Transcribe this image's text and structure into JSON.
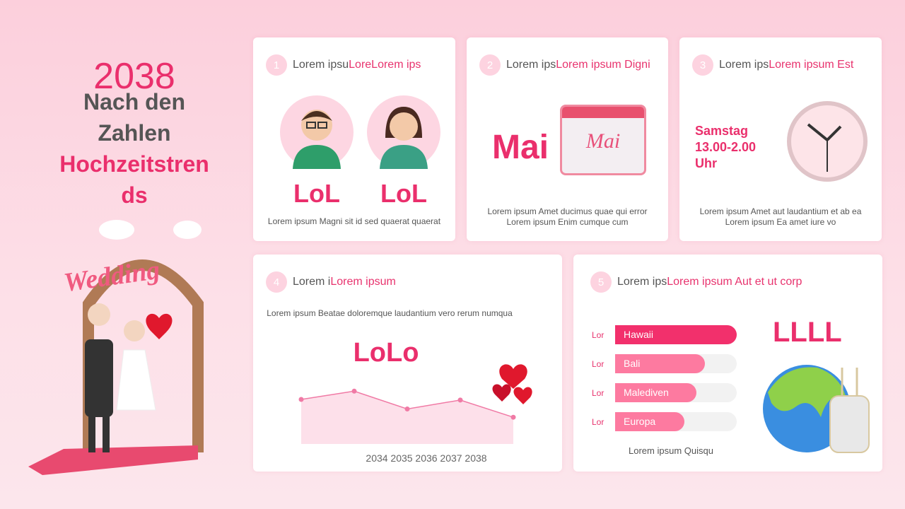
{
  "left": {
    "year": "2038",
    "title_line1": "Nach den",
    "title_line2": "Zahlen",
    "title_line3": "Hochzeitstren",
    "title_line4": "ds",
    "wedding_sign": "Wedding"
  },
  "cards": [
    {
      "num": "1",
      "title_gray": "Lorem ipsu",
      "title_pink": "LoreLorem ips",
      "label_a": "LoL",
      "label_b": "LoL",
      "caption": "Lorem ipsum Magni sit id sed quaerat quaerat"
    },
    {
      "num": "2",
      "title_gray": "Lorem ips",
      "title_pink": "Lorem ipsum Digni",
      "big": "Mai",
      "calendar_text": "Mai",
      "caption1": "Lorem ipsum Amet ducimus quae qui error",
      "caption2": "Lorem ipsum Enim cumque cum"
    },
    {
      "num": "3",
      "title_gray": "Lorem ips",
      "title_pink": "Lorem ipsum Est",
      "line1": "Samstag",
      "line2": "13.00-2.00",
      "line3": "Uhr",
      "caption1": "Lorem ipsum Amet aut laudantium et ab ea",
      "caption2": "Lorem ipsum Ea amet iure vo"
    },
    {
      "num": "4",
      "title_gray": "Lorem i",
      "title_pink": "Lorem ipsum",
      "subtitle": "Lorem ipsum Beatae doloremque laudantium vero rerum numqua",
      "big": "LoLo"
    },
    {
      "num": "5",
      "title_gray": "Lorem ips",
      "title_pink": "Lorem ipsum Aut et ut corp",
      "big": "LLLL",
      "caption": "Lorem ipsum Quisqu",
      "bars": [
        {
          "side": "Lor",
          "label": "Hawaii",
          "pct": 100,
          "color": "#f2306c"
        },
        {
          "side": "Lor",
          "label": "Bali",
          "pct": 74,
          "color": "#fd7aa0"
        },
        {
          "side": "Lor",
          "label": "Malediven",
          "pct": 67,
          "color": "#fd7aa0"
        },
        {
          "side": "Lor",
          "label": "Europa",
          "pct": 57,
          "color": "#fd7aa0"
        }
      ]
    }
  ],
  "chart_data": {
    "type": "area",
    "x": [
      "2034",
      "2035",
      "2036",
      "2037",
      "2038"
    ],
    "values": [
      70,
      83,
      55,
      69,
      42
    ],
    "title": "",
    "xlabel": "",
    "ylabel": "",
    "grid": false,
    "color": "#f07aa5"
  }
}
